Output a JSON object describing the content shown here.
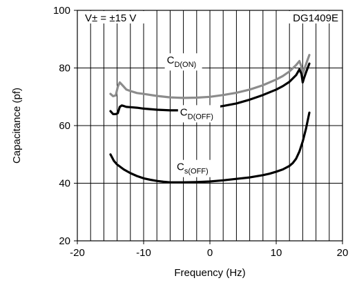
{
  "chart_data": {
    "type": "line",
    "title": "",
    "xlabel": "Frequency (Hz)",
    "ylabel": "Capacitance (pf)",
    "xlim": [
      -20,
      20
    ],
    "ylim": [
      20,
      100
    ],
    "x_ticks": [
      -20,
      -10,
      0,
      10,
      20
    ],
    "y_ticks": [
      20,
      40,
      60,
      80,
      100
    ],
    "x_tick_labels": [
      "-20",
      "-10",
      "0",
      "10",
      "20"
    ],
    "y_tick_labels": [
      "20",
      "40",
      "60",
      "80",
      "100"
    ],
    "grid": {
      "x_minor_lines": [
        -18,
        -16,
        -14,
        -12,
        -10,
        -8,
        -6,
        -4,
        -2,
        0,
        2,
        4,
        6,
        8,
        10,
        12,
        14,
        16,
        18
      ],
      "y_major_lines": [
        40,
        60,
        80
      ]
    },
    "annotations": {
      "condition": "V± = ±15 V",
      "part_number": "DG1409E"
    },
    "series": [
      {
        "name": "CD(ON)",
        "label_main": "C",
        "label_sub": "D(ON)",
        "label_at": [
          -6.5,
          81.5
        ],
        "color": "#8c8c8c",
        "x": [
          -15,
          -14.6,
          -14.2,
          -13.9,
          -13.6,
          -13.2,
          -12.6,
          -12,
          -11,
          -10,
          -8,
          -6,
          -4,
          -2,
          0,
          2,
          4,
          6,
          8,
          10,
          11,
          12,
          13,
          13.5,
          13.8,
          14,
          14.3,
          14.6,
          15
        ],
        "y": [
          71,
          70.2,
          70.5,
          73.5,
          75,
          74,
          72.5,
          72,
          71.3,
          71,
          70.3,
          69.8,
          69.6,
          69.7,
          70,
          70.6,
          71.4,
          72.5,
          74,
          76,
          77.2,
          78.8,
          81,
          82.4,
          80.5,
          78,
          80,
          82,
          84.5
        ]
      },
      {
        "name": "CD(OFF)",
        "label_main": "C",
        "label_sub": "D(OFF)",
        "label_at": [
          -4.5,
          63.5
        ],
        "color": "#000000",
        "x": [
          -15,
          -14.6,
          -14.2,
          -13.9,
          -13.6,
          -13.3,
          -13,
          -12.6,
          -12,
          -11,
          -10,
          -8,
          -6,
          -4,
          -2,
          0,
          2,
          4,
          6,
          8,
          10,
          11,
          12,
          13,
          13.5,
          13.8,
          14,
          14.2,
          14.5,
          15
        ],
        "y": [
          65,
          64,
          64,
          64.3,
          66.5,
          67,
          66.8,
          66.5,
          66.4,
          66.2,
          65.9,
          65.5,
          65.3,
          65.3,
          65.6,
          66.1,
          66.8,
          67.7,
          69,
          70.6,
          72.5,
          73.7,
          75.2,
          77.5,
          79.5,
          78,
          75,
          76.5,
          78.5,
          81.5
        ]
      },
      {
        "name": "Cs(OFF)",
        "label_main": "C",
        "label_sub": "s(OFF)",
        "label_at": [
          -5,
          44.5
        ],
        "color": "#000000",
        "x": [
          -15,
          -14.5,
          -14,
          -13,
          -12,
          -11,
          -10,
          -9,
          -8,
          -7,
          -6,
          -5,
          -4,
          -2,
          0,
          2,
          4,
          6,
          8,
          9,
          10,
          11,
          12,
          12.5,
          13,
          13.5,
          14,
          14.5,
          15
        ],
        "y": [
          50,
          47.8,
          46.5,
          44.8,
          43.5,
          42.5,
          41.7,
          41.2,
          40.8,
          40.5,
          40.3,
          40.3,
          40.3,
          40.4,
          40.6,
          41,
          41.5,
          42,
          42.8,
          43.3,
          44,
          44.8,
          46,
          47,
          48.5,
          51,
          54.5,
          59,
          64.5
        ]
      }
    ]
  }
}
